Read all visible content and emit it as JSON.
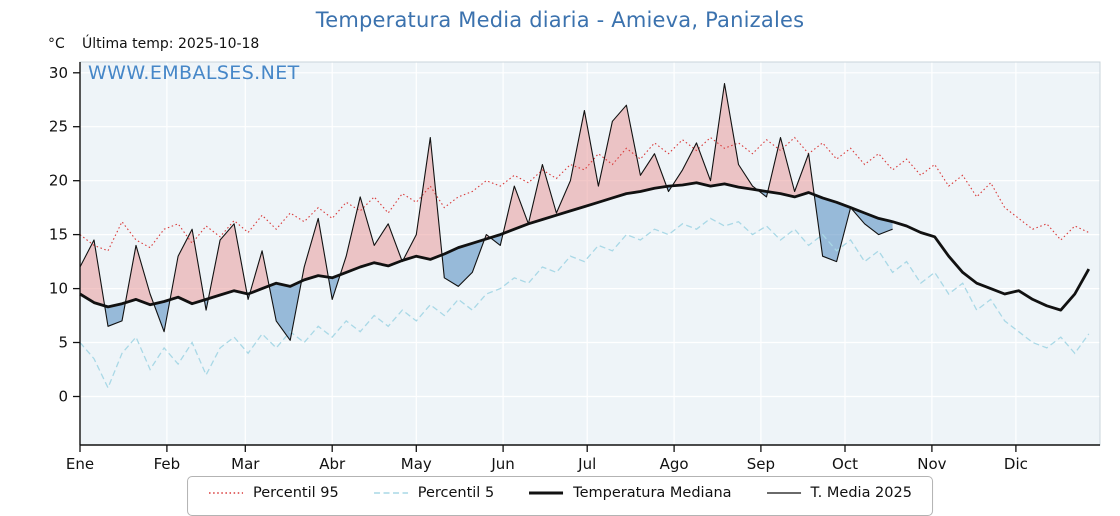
{
  "header": {
    "title": "Temperatura Media diaria - Amieva, Panizales",
    "unit_label": "°C",
    "last_temp_label": "Última temp: 2025-10-18"
  },
  "watermark": "WWW.EMBALSES.NET",
  "colors": {
    "title_blue": "#3b72ae",
    "watermark_blue": "#4687c8",
    "p95_red": "#d93a3a",
    "p5_cyan": "#a9d8e6",
    "line_black": "#111111",
    "fill_above_median": "#ea9a9a",
    "fill_below_median": "#5d93c4",
    "plot_bg": "#eef4f8",
    "grid": "#ffffff"
  },
  "chart_data": {
    "type": "line",
    "title": "Temperatura Media diaria - Amieva, Panizales",
    "xlabel": "",
    "ylabel": "°C",
    "grid": true,
    "legend_position": "bottom",
    "x_axis": {
      "months": [
        "Ene",
        "Feb",
        "Mar",
        "Abr",
        "May",
        "Jun",
        "Jul",
        "Ago",
        "Sep",
        "Oct",
        "Nov",
        "Dic"
      ],
      "month_start_days": [
        1,
        32,
        60,
        91,
        121,
        152,
        182,
        213,
        244,
        274,
        305,
        335
      ],
      "days_in_year": 365
    },
    "y_axis": {
      "ticks": [
        0,
        5,
        10,
        15,
        20,
        25,
        30
      ],
      "unit": "°C",
      "range": [
        -4.5,
        31
      ]
    },
    "series": {
      "percentil95": {
        "label": "Percentil 95",
        "color": "#d93a3a",
        "style": "dotted",
        "start_day": 1,
        "step_days": 5,
        "values": [
          15.0,
          14.0,
          13.5,
          16.2,
          14.5,
          13.8,
          15.5,
          16.0,
          14.2,
          15.8,
          14.8,
          16.3,
          15.2,
          16.8,
          15.5,
          17.0,
          16.2,
          17.5,
          16.5,
          18.0,
          17.2,
          18.5,
          17.0,
          18.8,
          18.0,
          19.5,
          17.5,
          18.5,
          19.0,
          20.0,
          19.5,
          20.5,
          19.8,
          21.0,
          20.2,
          21.5,
          21.0,
          22.5,
          21.5,
          23.0,
          22.0,
          23.5,
          22.5,
          23.8,
          22.8,
          24.0,
          23.0,
          23.5,
          22.5,
          23.8,
          22.8,
          24.0,
          22.5,
          23.5,
          22.0,
          23.0,
          21.5,
          22.5,
          21.0,
          22.0,
          20.5,
          21.5,
          19.5,
          20.5,
          18.5,
          19.8,
          17.5,
          16.5,
          15.5,
          16.0,
          14.5,
          15.8,
          15.2
        ]
      },
      "percentil5": {
        "label": "Percentil 5",
        "color": "#a9d8e6",
        "style": "dashed",
        "start_day": 1,
        "step_days": 5,
        "values": [
          5.0,
          3.5,
          0.8,
          4.0,
          5.5,
          2.5,
          4.5,
          3.0,
          5.0,
          2.0,
          4.5,
          5.5,
          4.0,
          5.8,
          4.5,
          6.0,
          5.0,
          6.5,
          5.5,
          7.0,
          6.0,
          7.5,
          6.5,
          8.0,
          7.0,
          8.5,
          7.5,
          9.0,
          8.0,
          9.5,
          10.0,
          11.0,
          10.5,
          12.0,
          11.5,
          13.0,
          12.5,
          14.0,
          13.5,
          15.0,
          14.5,
          15.5,
          15.0,
          16.0,
          15.5,
          16.5,
          15.8,
          16.2,
          15.0,
          15.8,
          14.5,
          15.5,
          14.0,
          15.0,
          13.5,
          14.5,
          12.5,
          13.5,
          11.5,
          12.5,
          10.5,
          11.5,
          9.5,
          10.5,
          8.0,
          9.0,
          7.0,
          6.0,
          5.0,
          4.5,
          5.5,
          4.0,
          5.8
        ]
      },
      "mediana": {
        "label": "Temperatura Mediana",
        "color": "#111111",
        "style": "solid-thick",
        "start_day": 1,
        "step_days": 5,
        "values": [
          9.5,
          8.7,
          8.3,
          8.6,
          9.0,
          8.5,
          8.8,
          9.2,
          8.6,
          9.0,
          9.4,
          9.8,
          9.5,
          10.0,
          10.5,
          10.2,
          10.8,
          11.2,
          11.0,
          11.5,
          12.0,
          12.4,
          12.1,
          12.6,
          13.0,
          12.7,
          13.2,
          13.8,
          14.2,
          14.6,
          15.0,
          15.5,
          16.0,
          16.4,
          16.8,
          17.2,
          17.6,
          18.0,
          18.4,
          18.8,
          19.0,
          19.3,
          19.5,
          19.6,
          19.8,
          19.5,
          19.7,
          19.4,
          19.2,
          19.0,
          18.8,
          18.5,
          18.9,
          18.4,
          18.0,
          17.5,
          17.0,
          16.5,
          16.2,
          15.8,
          15.2,
          14.8,
          13.0,
          11.5,
          10.5,
          10.0,
          9.5,
          9.8,
          9.0,
          8.4,
          8.0,
          9.5,
          11.8
        ]
      },
      "media2025": {
        "label": "T. Media 2025",
        "color": "#111111",
        "style": "solid-thin",
        "start_day": 1,
        "step_days": 5,
        "last_day": 291,
        "values": [
          12.0,
          14.5,
          6.5,
          7.0,
          14.0,
          9.5,
          6.0,
          13.0,
          15.5,
          8.0,
          14.5,
          16.0,
          9.0,
          13.5,
          7.0,
          5.2,
          12.0,
          16.5,
          9.0,
          13.0,
          18.5,
          14.0,
          16.0,
          12.5,
          15.0,
          24.0,
          11.0,
          10.2,
          11.5,
          15.0,
          14.0,
          19.5,
          16.0,
          21.5,
          17.0,
          20.0,
          26.5,
          19.5,
          25.5,
          27.0,
          20.5,
          22.5,
          19.0,
          21.0,
          23.5,
          20.0,
          29.0,
          21.5,
          19.5,
          18.5,
          24.0,
          19.0,
          22.5,
          13.0,
          12.5,
          17.5,
          16.0,
          15.0,
          15.5
        ]
      }
    },
    "fills": {
      "above_median_color": "#ea9a9a",
      "below_median_color": "#5d93c4",
      "description": "area between T. Media 2025 and Temperatura Mediana; red-pink where 2025 above median, steel blue where below"
    }
  },
  "legend": {
    "items": [
      {
        "key": "percentil95"
      },
      {
        "key": "percentil5"
      },
      {
        "key": "mediana"
      },
      {
        "key": "media2025"
      }
    ]
  }
}
